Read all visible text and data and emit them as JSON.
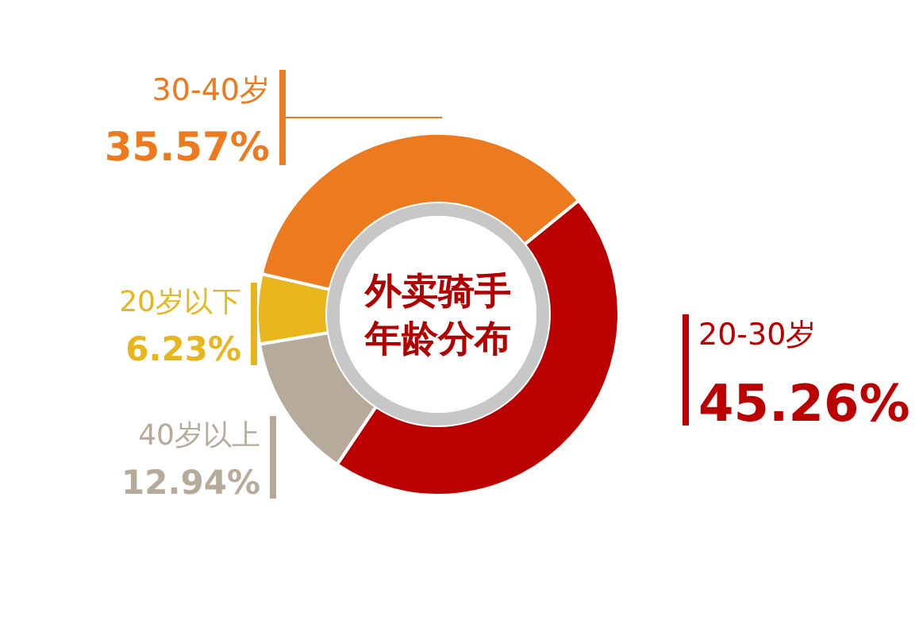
{
  "chart_data": {
    "type": "donut",
    "title": "外卖骑手年龄分布",
    "categories": [
      "20-30岁",
      "40岁以上",
      "20岁以下",
      "30-40岁"
    ],
    "values": [
      45.26,
      12.94,
      6.23,
      35.57
    ],
    "colors": [
      "#bb0000",
      "#b6aa9b",
      "#e9b51c",
      "#ec7a1e"
    ],
    "value_labels": [
      "45.26%",
      "12.94%",
      "6.23%",
      "35.57%"
    ]
  }
}
